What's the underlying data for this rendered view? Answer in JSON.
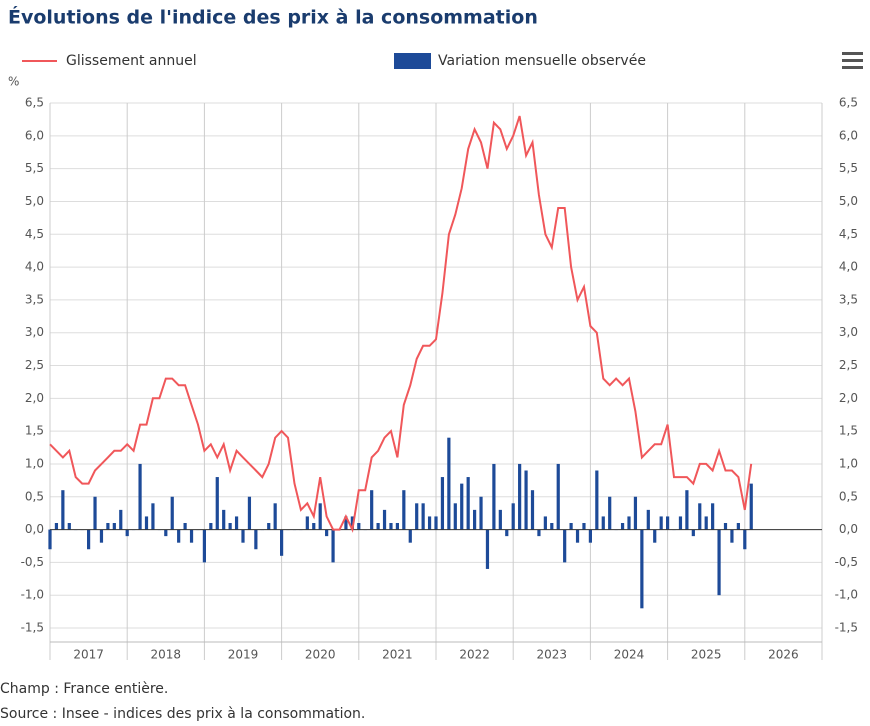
{
  "chart_data": {
    "type": "bar-line",
    "title": "Évolutions de l'indice des prix à la consommation",
    "y_unit": "%",
    "footnotes": [
      "Champ : France entière.",
      "Source : Insee - indices des prix à la consommation."
    ],
    "x_labels": [
      "2017",
      "2018",
      "2019",
      "2020",
      "2021",
      "2022",
      "2023",
      "2024",
      "2025",
      "2026"
    ],
    "ylim": [
      -1.5,
      6.5
    ],
    "yticks": [
      {
        "value": -1.5,
        "label": "-1,5"
      },
      {
        "value": -1,
        "label": "-1,0"
      },
      {
        "value": -0.5,
        "label": "-0,5"
      },
      {
        "value": 0,
        "label": "0,0"
      },
      {
        "value": 0.5,
        "label": "0,5"
      },
      {
        "value": 1,
        "label": "1,0"
      },
      {
        "value": 1.5,
        "label": "1,5"
      },
      {
        "value": 2,
        "label": "2,0"
      },
      {
        "value": 2.5,
        "label": "2,5"
      },
      {
        "value": 3,
        "label": "3,0"
      },
      {
        "value": 3.5,
        "label": "3,5"
      },
      {
        "value": 4,
        "label": "4,0"
      },
      {
        "value": 4.5,
        "label": "4,5"
      },
      {
        "value": 5,
        "label": "5,0"
      },
      {
        "value": 5.5,
        "label": "5,5"
      },
      {
        "value": 6,
        "label": "6,0"
      },
      {
        "value": 6.5,
        "label": "6,5"
      }
    ],
    "grid": true,
    "series": [
      {
        "name": "Glissement annuel",
        "type": "line",
        "color": "#f0575a",
        "values": [
          1.3,
          1.2,
          1.1,
          1.2,
          0.8,
          0.7,
          0.7,
          0.9,
          1.0,
          1.1,
          1.2,
          1.2,
          1.3,
          1.2,
          1.6,
          1.6,
          2.0,
          2.0,
          2.3,
          2.3,
          2.2,
          2.2,
          1.9,
          1.6,
          1.2,
          1.3,
          1.1,
          1.3,
          0.9,
          1.2,
          1.1,
          1.0,
          0.9,
          0.8,
          1.0,
          1.4,
          1.5,
          1.4,
          0.7,
          0.3,
          0.4,
          0.2,
          0.8,
          0.2,
          0.0,
          0.0,
          0.2,
          0.0,
          0.6,
          0.6,
          1.1,
          1.2,
          1.4,
          1.5,
          1.1,
          1.9,
          2.2,
          2.6,
          2.8,
          2.8,
          2.9,
          3.6,
          4.5,
          4.8,
          5.2,
          5.8,
          6.1,
          5.9,
          5.5,
          6.2,
          6.1,
          5.8,
          6.0,
          6.3,
          5.7,
          5.9,
          5.1,
          4.5,
          4.3,
          4.9,
          4.9,
          4.0,
          3.5,
          3.7,
          3.1,
          3.0,
          2.3,
          2.2,
          2.3,
          2.2,
          2.3,
          1.8,
          1.1,
          1.2,
          1.3,
          1.3,
          1.6,
          0.8,
          0.8,
          0.8,
          0.7,
          1.0,
          1.0,
          0.9,
          1.2,
          0.9,
          0.9,
          0.8,
          0.3,
          1.0
        ]
      },
      {
        "name": "Variation mensuelle observée",
        "type": "bar",
        "color": "#1d4a98",
        "values": [
          -0.3,
          0.1,
          0.6,
          0.1,
          0.0,
          0.0,
          -0.3,
          0.5,
          -0.2,
          0.1,
          0.1,
          0.3,
          -0.1,
          0.0,
          1.0,
          0.2,
          0.4,
          0.0,
          -0.1,
          0.5,
          -0.2,
          0.1,
          -0.2,
          0.0,
          -0.5,
          0.1,
          0.8,
          0.3,
          0.1,
          0.2,
          -0.2,
          0.5,
          -0.3,
          0.0,
          0.1,
          0.4,
          -0.4,
          0.0,
          0.0,
          0.0,
          0.2,
          0.1,
          0.4,
          -0.1,
          -0.5,
          0.0,
          0.2,
          0.2,
          0.1,
          0.0,
          0.6,
          0.1,
          0.3,
          0.1,
          0.1,
          0.6,
          -0.2,
          0.4,
          0.4,
          0.2,
          0.2,
          0.8,
          1.4,
          0.4,
          0.7,
          0.8,
          0.3,
          0.5,
          -0.6,
          1.0,
          0.3,
          -0.1,
          0.4,
          1.0,
          0.9,
          0.6,
          -0.1,
          0.2,
          0.1,
          1.0,
          -0.5,
          0.1,
          -0.2,
          0.1,
          -0.2,
          0.9,
          0.2,
          0.5,
          0.0,
          0.1,
          0.2,
          0.5,
          -1.2,
          0.3,
          -0.2,
          0.2,
          0.2,
          0.0,
          0.2,
          0.6,
          -0.1,
          0.4,
          0.2,
          0.4,
          -1.0,
          0.1,
          -0.2,
          0.1,
          -0.3,
          0.7
        ]
      }
    ]
  }
}
